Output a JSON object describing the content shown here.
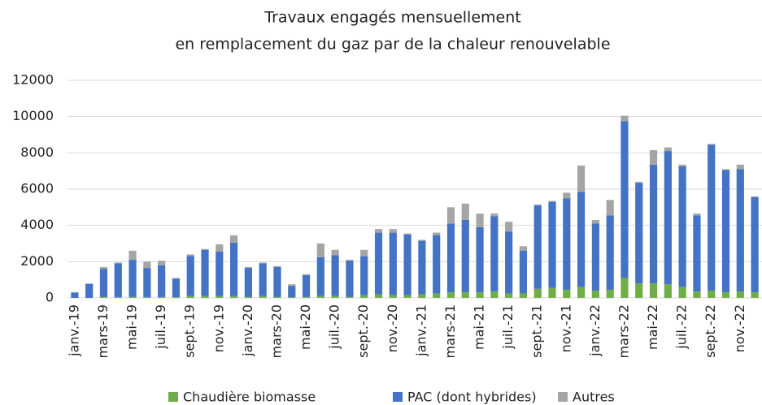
{
  "chart_data": {
    "type": "stacked_bar",
    "title": [
      "Travaux engagés mensuellement",
      "en remplacement du gaz par de la chaleur renouvelable"
    ],
    "categories": [
      "janv.-19",
      null,
      "mars-19",
      null,
      "mai-19",
      null,
      "juil.-19",
      null,
      "sept.-19",
      null,
      "nov.-19",
      null,
      "janv.-20",
      null,
      "mars-20",
      null,
      "mai-20",
      null,
      "juil.-20",
      null,
      "sept.-20",
      null,
      "nov.-20",
      null,
      "janv.-21",
      null,
      "mars-21",
      null,
      "mai-21",
      null,
      "juil.-21",
      null,
      "sept.-21",
      null,
      "nov.-21",
      null,
      "janv.-22",
      null,
      "mars-22",
      null,
      "mai-22",
      null,
      "juil.-22",
      null,
      "sept.-22",
      null,
      "nov.-22",
      null
    ],
    "series": [
      {
        "name": "Chaudière biomasse",
        "color": "#70ad47",
        "values": [
          0,
          0,
          50,
          50,
          50,
          50,
          50,
          30,
          100,
          100,
          100,
          100,
          50,
          100,
          50,
          30,
          50,
          100,
          100,
          50,
          150,
          200,
          150,
          150,
          200,
          250,
          300,
          300,
          300,
          350,
          250,
          250,
          500,
          550,
          450,
          600,
          400,
          450,
          1100,
          800,
          800,
          750,
          600,
          350,
          400,
          300,
          350,
          300
        ]
      },
      {
        "name": "PAC (dont hybrides)",
        "color": "#4472c4",
        "values": [
          300,
          780,
          1550,
          1850,
          2050,
          1600,
          1750,
          1030,
          2200,
          2550,
          2450,
          2950,
          1600,
          1800,
          1650,
          620,
          1200,
          2150,
          2250,
          2000,
          2150,
          3400,
          3450,
          3350,
          2950,
          3200,
          3800,
          4000,
          3600,
          4150,
          3400,
          2350,
          4600,
          4750,
          5050,
          5250,
          3700,
          4100,
          8650,
          5550,
          6550,
          7350,
          6650,
          4200,
          8050,
          6750,
          6750,
          5250
        ]
      },
      {
        "name": "Autres",
        "color": "#a5a5a5",
        "values": [
          0,
          0,
          100,
          50,
          500,
          350,
          250,
          40,
          100,
          50,
          400,
          400,
          50,
          50,
          50,
          100,
          50,
          750,
          300,
          50,
          350,
          200,
          200,
          50,
          50,
          150,
          900,
          900,
          750,
          150,
          550,
          250,
          50,
          50,
          300,
          1450,
          200,
          850,
          300,
          50,
          800,
          200,
          100,
          100,
          50,
          50,
          250,
          50
        ]
      }
    ],
    "ylim": [
      0,
      12000
    ],
    "yticks": [
      0,
      2000,
      4000,
      6000,
      8000,
      10000,
      12000
    ],
    "grid": true,
    "legend": "bottom"
  }
}
